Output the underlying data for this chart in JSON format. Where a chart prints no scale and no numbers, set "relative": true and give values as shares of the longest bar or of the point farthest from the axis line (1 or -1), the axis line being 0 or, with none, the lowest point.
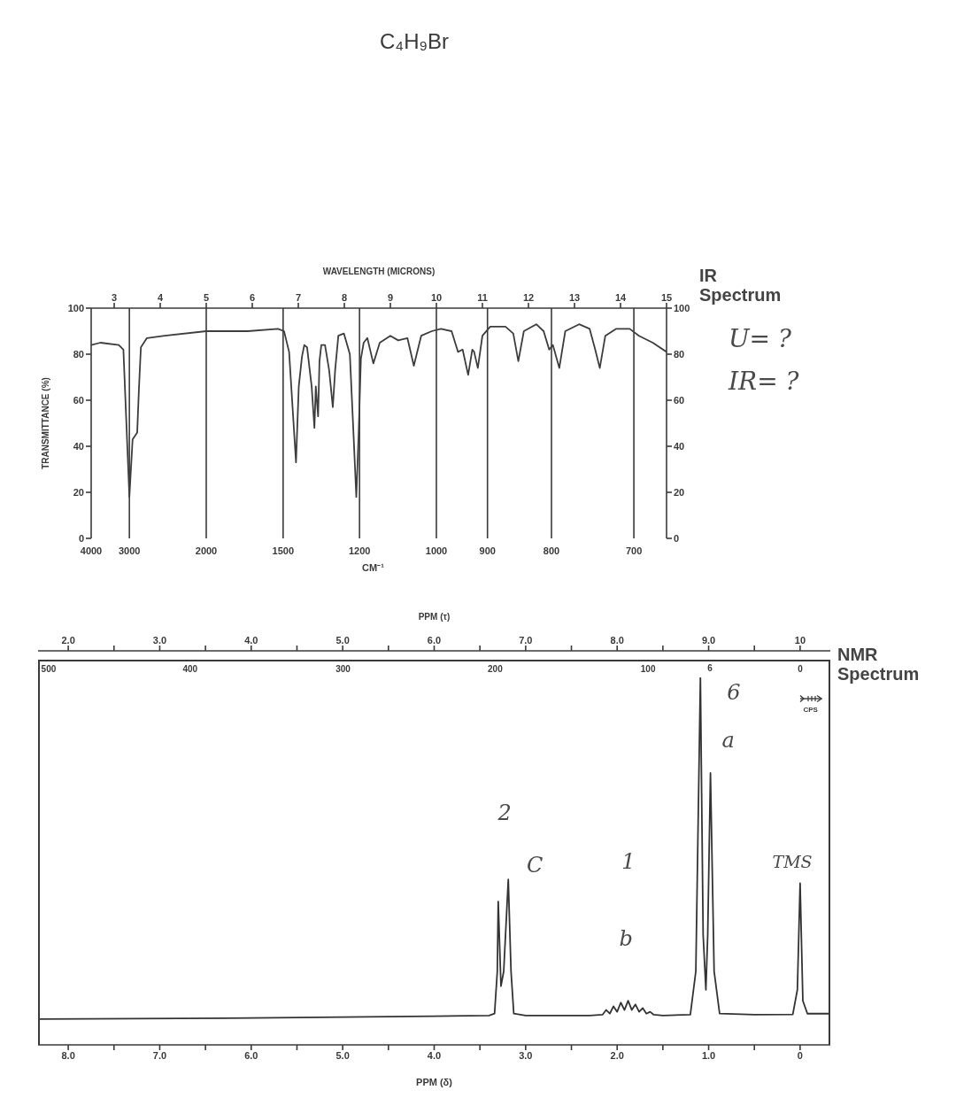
{
  "chart_data": [
    {
      "type": "line",
      "annotations": [
        "C₄H₉Br",
        "IR Spectrum",
        "U= ?",
        "IR= ?",
        "4000",
        "3000",
        "2000",
        "1500",
        "1200",
        "1000",
        "900",
        "800",
        "700",
        "CM⁻¹"
      ],
      "xlabel": "WAVELENGTH (MICRONS)",
      "ylabel": "TRANSMITTANCE (%)",
      "xlim": [
        2.5,
        15
      ],
      "xticks": [
        3,
        4,
        5,
        6,
        7,
        8,
        9,
        10,
        11,
        12,
        13,
        14,
        15
      ],
      "ylim": [
        0,
        100
      ],
      "yticks": [
        0,
        20,
        40,
        60,
        80,
        100
      ],
      "y2lim": [
        0,
        100
      ],
      "y2ticks": [
        0,
        20,
        40,
        60,
        80,
        100
      ],
      "ref_lines": [
        {
          "axis": "x",
          "value": 3.33
        },
        {
          "axis": "x",
          "value": 5
        },
        {
          "axis": "x",
          "value": 6.67
        },
        {
          "axis": "x",
          "value": 8.33
        },
        {
          "axis": "x",
          "value": 10
        },
        {
          "axis": "x",
          "value": 11.11
        },
        {
          "axis": "x",
          "value": 12.5
        },
        {
          "axis": "x",
          "value": 14.29
        }
      ],
      "series": [
        {
          "color": "#3d3d3d",
          "x": [
            2.5,
            2.7,
            3.1,
            3.2,
            3.33,
            3.4,
            3.5,
            3.54,
            3.58,
            3.71,
            4.1,
            5.0,
            5.9,
            6.56,
            6.69,
            6.8,
            6.95,
            7.01,
            7.08,
            7.13,
            7.19,
            7.29,
            7.35,
            7.38,
            7.43,
            7.46,
            7.5,
            7.58,
            7.67,
            7.75,
            7.8,
            7.87,
            7.99,
            8.12,
            8.2,
            8.26,
            8.31,
            8.36,
            8.42,
            8.5,
            8.63,
            8.77,
            9.0,
            9.17,
            9.37,
            9.51,
            9.67,
            9.9,
            10.1,
            10.33,
            10.47,
            10.57,
            10.69,
            10.78,
            10.82,
            10.9,
            11.0,
            11.17,
            11.5,
            11.67,
            11.78,
            11.9,
            12.17,
            12.33,
            12.45,
            12.53,
            12.67,
            12.8,
            13.1,
            13.33,
            13.45,
            13.55,
            13.67,
            13.9,
            14.2,
            14.4,
            14.7,
            15.0
          ],
          "values": [
            84,
            85,
            84,
            82,
            18,
            43,
            46,
            66,
            83,
            87,
            88,
            90,
            90,
            91,
            90,
            81,
            33,
            66,
            79,
            84,
            83,
            66,
            48,
            66,
            53,
            77,
            84,
            84,
            73,
            57,
            73,
            88,
            89,
            80,
            45,
            18,
            45,
            78,
            85,
            87,
            76,
            85,
            88,
            86,
            87,
            75,
            88,
            90,
            91,
            90,
            81,
            82,
            71,
            82,
            81,
            74,
            88,
            92,
            92,
            89,
            77,
            90,
            93,
            90,
            82,
            84,
            74,
            90,
            93,
            91,
            82,
            74,
            88,
            91,
            91,
            88,
            85,
            81
          ]
        }
      ]
    },
    {
      "type": "line",
      "title": "NMR Spectrum",
      "relative": true,
      "xlabel": "PPM (δ)",
      "x2label": "PPM (τ)",
      "xlim": [
        8.33,
        -0.33
      ],
      "xticks": [
        {
          "value": 8,
          "label": "8.0"
        },
        {
          "value": 7.5,
          "label": null
        },
        {
          "value": 7,
          "label": "7.0"
        },
        {
          "value": 6.5,
          "label": null
        },
        {
          "value": 6,
          "label": "6.0"
        },
        {
          "value": 5.5,
          "label": null
        },
        {
          "value": 5,
          "label": "5.0"
        },
        {
          "value": 4.5,
          "label": null
        },
        {
          "value": 4,
          "label": "4.0"
        },
        {
          "value": 3.5,
          "label": null
        },
        {
          "value": 3,
          "label": "3.0"
        },
        {
          "value": 2.5,
          "label": null
        },
        {
          "value": 2,
          "label": "2.0"
        },
        {
          "value": 1.5,
          "label": null
        },
        {
          "value": 1,
          "label": "1.0"
        },
        {
          "value": 0.5,
          "label": null
        },
        0
      ],
      "x2lim": [
        1.67,
        10.33
      ],
      "x2ticks": [
        {
          "value": 2,
          "label": "2.0"
        },
        {
          "value": 2.5,
          "label": null
        },
        {
          "value": 3,
          "label": "3.0"
        },
        {
          "value": 3.5,
          "label": null
        },
        {
          "value": 4,
          "label": "4.0"
        },
        {
          "value": 4.5,
          "label": null
        },
        {
          "value": 5,
          "label": "5.0"
        },
        {
          "value": 5.5,
          "label": null
        },
        {
          "value": 6,
          "label": "6.0"
        },
        {
          "value": 6.5,
          "label": null
        },
        {
          "value": 7,
          "label": "7.0"
        },
        {
          "value": 7.5,
          "label": null
        },
        {
          "value": 8,
          "label": "8.0"
        },
        {
          "value": 8.5,
          "label": null
        },
        {
          "value": 9,
          "label": "9.0"
        },
        {
          "value": 9.5,
          "label": null
        },
        10
      ],
      "annotations": [
        "6",
        "6",
        "a",
        "2",
        "C",
        "1",
        "b",
        "TMS",
        "500",
        "400",
        "300",
        "200",
        "100",
        "0",
        "CPS"
      ],
      "series": [
        {
          "color": "#333333",
          "x": [
            8.33,
            6.0,
            4.0,
            3.4,
            3.34,
            3.31,
            3.3,
            3.27,
            3.24,
            3.19,
            3.16,
            3.13,
            3.0,
            2.3,
            2.16,
            2.12,
            2.08,
            2.04,
            2.0,
            1.96,
            1.92,
            1.88,
            1.84,
            1.8,
            1.76,
            1.72,
            1.68,
            1.64,
            1.6,
            1.5,
            1.2,
            1.14,
            1.09,
            1.06,
            1.03,
            1.01,
            0.98,
            0.94,
            0.88,
            0.5,
            0.08,
            0.03,
            0.0,
            -0.03,
            -0.08,
            -0.33
          ],
          "values": [
            0.07,
            0.073,
            0.078,
            0.08,
            0.085,
            0.2,
            0.39,
            0.16,
            0.2,
            0.45,
            0.2,
            0.085,
            0.08,
            0.08,
            0.082,
            0.095,
            0.085,
            0.105,
            0.09,
            0.115,
            0.095,
            0.12,
            0.095,
            0.11,
            0.09,
            0.1,
            0.085,
            0.09,
            0.082,
            0.08,
            0.082,
            0.2,
            1.0,
            0.3,
            0.15,
            0.3,
            0.74,
            0.2,
            0.085,
            0.082,
            0.083,
            0.15,
            0.44,
            0.12,
            0.085,
            0.085
          ]
        }
      ]
    }
  ]
}
